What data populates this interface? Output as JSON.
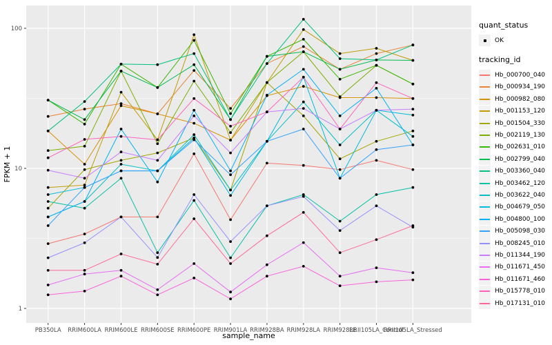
{
  "figure": {
    "background": "#FFFFFF",
    "panel_bg": "#EBEBEB",
    "grid_color": "#FFFFFF",
    "tick_color": "#333333",
    "tick_label_color": "#4D4D4D",
    "axis_title_color": "#000000",
    "point_color": "#000000"
  },
  "legend": {
    "quant_status_title": "quant_status",
    "quant_status_items": [
      {
        "label": "OK",
        "symbol": "black-point"
      }
    ],
    "tracking_title": "tracking_id",
    "key_bg": "#F2F2F2"
  },
  "chart_data": {
    "type": "line",
    "title": "",
    "xlabel": "sample_name",
    "ylabel": "FPKM + 1",
    "y_scale": "log10",
    "y_ticks": [
      1,
      10,
      100
    ],
    "y_minor_breaks": [
      3.1623,
      31.623
    ],
    "ylim": [
      0.93,
      146
    ],
    "grid": "major-and-minor, white on grey panel",
    "legend_position": "right",
    "categories": [
      "PB350LA",
      "RRIM600LA",
      "RRIM600LE",
      "RRIM600SE",
      "RRIM600PE",
      "RRIM901LA",
      "RRIM928BA",
      "RRIM928LA",
      "RRIM928LE",
      "RRII105LA_Control",
      "RRII105LA_Stressed"
    ],
    "series": [
      {
        "name": "Hb_000700_040",
        "color": "#F8766D",
        "values": [
          2.9,
          3.4,
          4.5,
          4.5,
          12.7,
          4.3,
          10.9,
          10.5,
          9.8,
          11.4,
          9.8
        ]
      },
      {
        "name": "Hb_000934_190",
        "color": "#EA8331",
        "values": [
          23.5,
          26.5,
          29,
          24.5,
          50,
          26.8,
          56,
          74,
          51,
          66,
          76
        ]
      },
      {
        "name": "Hb_000982_080",
        "color": "#D89000",
        "values": [
          18.5,
          10.7,
          28,
          24.5,
          21,
          15.9,
          33,
          38.5,
          32,
          32,
          31.5
        ]
      },
      {
        "name": "Hb_001153_120",
        "color": "#C09B00",
        "values": [
          7.3,
          7.6,
          35,
          16,
          90,
          15.9,
          41,
          98,
          66,
          72,
          59
        ]
      },
      {
        "name": "Hb_001504_330",
        "color": "#A3A500",
        "values": [
          5.2,
          9.8,
          11.4,
          12.9,
          16.5,
          7.0,
          41,
          23.7,
          11.7,
          15.6,
          18.5
        ]
      },
      {
        "name": "Hb_002119_130",
        "color": "#7CAE00",
        "values": [
          13.4,
          14.4,
          49.5,
          15,
          42,
          18,
          41,
          68,
          32.5,
          54.4,
          40
        ]
      },
      {
        "name": "Hb_002631_010",
        "color": "#39B600",
        "values": [
          30.7,
          20.7,
          55.5,
          37.8,
          82,
          24.6,
          63,
          83.5,
          43.3,
          54.4,
          40
        ]
      },
      {
        "name": "Hb_002799_040",
        "color": "#00BB4E",
        "values": [
          30.7,
          22.3,
          49.5,
          37.8,
          55,
          22.3,
          63,
          68,
          51,
          59.4,
          59
        ]
      },
      {
        "name": "Hb_003360_040",
        "color": "#00BF7D",
        "values": [
          18.5,
          30,
          55.5,
          55,
          66,
          22.3,
          56,
          116,
          60.7,
          59.4,
          76
        ]
      },
      {
        "name": "Hb_003462_120",
        "color": "#00C1A3",
        "values": [
          5.8,
          5.2,
          8.5,
          2.5,
          5.9,
          2.3,
          5.4,
          6.5,
          4.2,
          6.5,
          7.3
        ]
      },
      {
        "name": "Hb_003622_040",
        "color": "#00BFC4",
        "values": [
          4.5,
          5.8,
          10.7,
          9.6,
          17.4,
          7.0,
          15.6,
          29.8,
          14.7,
          26,
          16.9
        ]
      },
      {
        "name": "Hb_004679_050",
        "color": "#00BADE",
        "values": [
          6.5,
          7.3,
          9.6,
          9.6,
          16.5,
          6.4,
          15.6,
          44.8,
          8.5,
          26,
          24
        ]
      },
      {
        "name": "Hb_004800_100",
        "color": "#00B0F6",
        "values": [
          4.5,
          5.8,
          19.1,
          8.0,
          26,
          9.6,
          33.3,
          51,
          23.7,
          37.3,
          14.7
        ]
      },
      {
        "name": "Hb_005098_030",
        "color": "#35A2FF",
        "values": [
          3.9,
          7.3,
          9.6,
          9.6,
          16,
          9.0,
          15.6,
          19.1,
          8.5,
          13.6,
          14.7
        ]
      },
      {
        "name": "Hb_008245_010",
        "color": "#9590FF",
        "values": [
          2.3,
          2.94,
          4.5,
          2.31,
          6.5,
          3.0,
          5.4,
          6.3,
          3.6,
          5.4,
          3.8
        ]
      },
      {
        "name": "Hb_011344_190",
        "color": "#C77CFF",
        "values": [
          9.7,
          8.5,
          13.1,
          11.4,
          23.7,
          12.9,
          25.3,
          26.8,
          19.1,
          26,
          26.5
        ]
      },
      {
        "name": "Hb_011671_450",
        "color": "#E76BF3",
        "values": [
          1.47,
          1.76,
          1.87,
          1.36,
          2.09,
          1.31,
          2.05,
          2.95,
          1.7,
          1.95,
          1.8
        ]
      },
      {
        "name": "Hb_011671_460",
        "color": "#FA62DB",
        "values": [
          1.25,
          1.33,
          1.7,
          1.25,
          1.65,
          1.17,
          1.7,
          2.0,
          1.45,
          1.55,
          1.6
        ]
      },
      {
        "name": "Hb_015778_010",
        "color": "#FF62BC",
        "values": [
          11.9,
          16.1,
          16.9,
          16,
          31.5,
          20,
          25.3,
          44.8,
          19.1,
          40.9,
          31.5
        ]
      },
      {
        "name": "Hb_017131_010",
        "color": "#FF6A98",
        "values": [
          1.87,
          1.87,
          2.45,
          2.07,
          4.37,
          2.09,
          3.3,
          4.85,
          2.5,
          3.1,
          3.9
        ]
      }
    ]
  }
}
